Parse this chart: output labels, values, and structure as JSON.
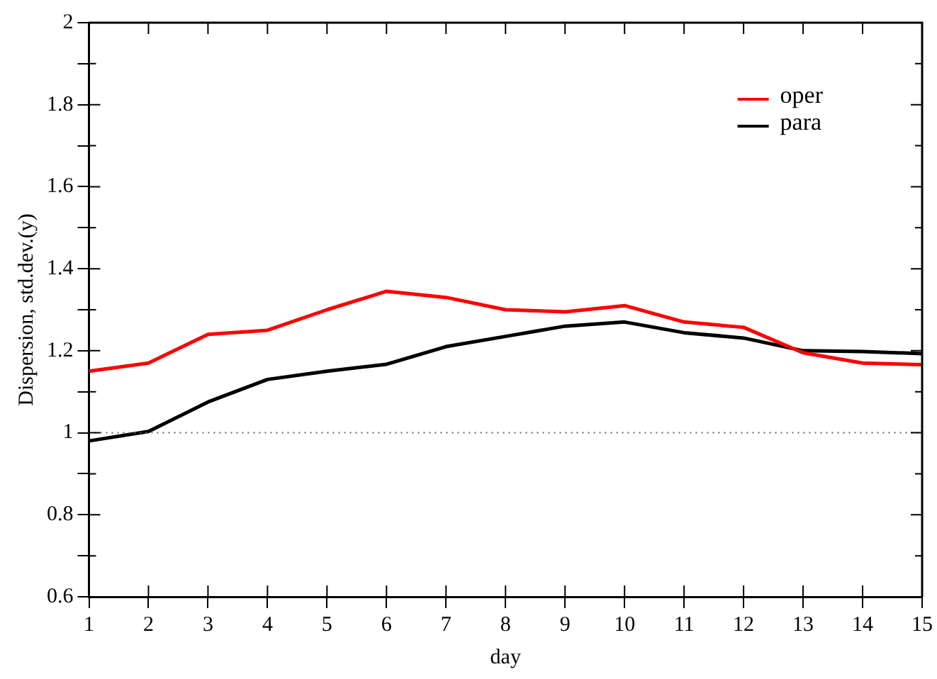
{
  "chart_data": {
    "type": "line",
    "xlabel": "day",
    "ylabel": "Dispersion, std.dev.(y)",
    "x": [
      1,
      2,
      3,
      4,
      5,
      6,
      7,
      8,
      9,
      10,
      11,
      12,
      13,
      14,
      15
    ],
    "series": [
      {
        "name": "oper",
        "color": "#ff0000",
        "values": [
          1.15,
          1.17,
          1.24,
          1.25,
          1.3,
          1.345,
          1.33,
          1.3,
          1.295,
          1.31,
          1.27,
          1.257,
          1.195,
          1.17,
          1.166
        ]
      },
      {
        "name": "para",
        "color": "#000000",
        "values": [
          0.98,
          1.003,
          1.075,
          1.13,
          1.15,
          1.167,
          1.21,
          1.235,
          1.26,
          1.27,
          1.244,
          1.231,
          1.2,
          1.198,
          1.193
        ]
      }
    ],
    "xlim": [
      1,
      15
    ],
    "xticks": [
      1,
      2,
      3,
      4,
      5,
      6,
      7,
      8,
      9,
      10,
      11,
      12,
      13,
      14,
      15
    ],
    "ylim": [
      0.6,
      2
    ],
    "yticks": [
      0.6,
      {
        "value": 0.7,
        "label": null
      },
      0.8,
      {
        "value": 0.9,
        "label": null
      },
      1,
      {
        "value": 1.1,
        "label": null
      },
      1.2,
      {
        "value": 1.3,
        "label": null
      },
      1.4,
      {
        "value": 1.5,
        "label": null
      },
      1.6,
      {
        "value": 1.7,
        "label": null
      },
      1.8,
      {
        "value": 1.9,
        "label": null
      },
      2
    ],
    "ref_lines": [
      {
        "axis": "y",
        "value": 1,
        "color": "#666666",
        "line_style": "dotted"
      }
    ],
    "legend": "top right",
    "grid": false,
    "marker": "none",
    "line_style": "solid"
  }
}
